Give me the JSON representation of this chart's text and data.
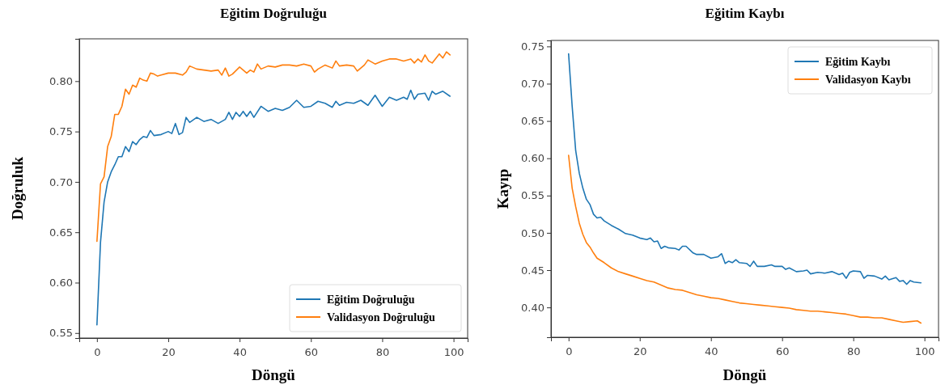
{
  "chart_data": [
    {
      "type": "line",
      "title": "Eğitim Doğruluğu",
      "xlabel": "Döngü",
      "ylabel": "Doğruluk",
      "xlim": [
        -4.95,
        103.95
      ],
      "ylim": [
        0.545,
        0.842
      ],
      "xticks": [
        0,
        20,
        40,
        60,
        80,
        100
      ],
      "yticks": [
        {
          "value": 0.55,
          "label": "0.55"
        },
        {
          "value": 0.6,
          "label": "0.60"
        },
        {
          "value": 0.65,
          "label": "0.65"
        },
        {
          "value": 0.7,
          "label": "0.70"
        },
        {
          "value": 0.75,
          "label": "0.75"
        },
        {
          "value": 0.8,
          "label": "0.80"
        }
      ],
      "legend": "bottom right",
      "grid": false,
      "series": [
        {
          "name": "Eğitim Doğruluğu",
          "color": "#1f77b4",
          "x": [
            0,
            1,
            2,
            3,
            4,
            5,
            6,
            7,
            8,
            9,
            10,
            11,
            12,
            13,
            14,
            15,
            16,
            18,
            20,
            21,
            22,
            23,
            24,
            25,
            26,
            28,
            30,
            32,
            34,
            36,
            37,
            38,
            39,
            40,
            41,
            42,
            43,
            44,
            46,
            48,
            50,
            52,
            54,
            56,
            58,
            60,
            62,
            64,
            66,
            67,
            68,
            70,
            72,
            74,
            76,
            78,
            80,
            82,
            84,
            86,
            87,
            88,
            89,
            90,
            92,
            93,
            94,
            95,
            97,
            99
          ],
          "values": [
            0.558,
            0.64,
            0.68,
            0.7,
            0.71,
            0.717,
            0.725,
            0.725,
            0.735,
            0.73,
            0.74,
            0.737,
            0.742,
            0.745,
            0.744,
            0.751,
            0.746,
            0.747,
            0.75,
            0.748,
            0.758,
            0.747,
            0.749,
            0.764,
            0.759,
            0.764,
            0.76,
            0.762,
            0.758,
            0.762,
            0.769,
            0.762,
            0.769,
            0.765,
            0.77,
            0.765,
            0.77,
            0.764,
            0.775,
            0.77,
            0.773,
            0.771,
            0.774,
            0.781,
            0.774,
            0.775,
            0.78,
            0.778,
            0.774,
            0.78,
            0.776,
            0.779,
            0.778,
            0.781,
            0.776,
            0.786,
            0.775,
            0.784,
            0.781,
            0.784,
            0.782,
            0.791,
            0.782,
            0.787,
            0.788,
            0.781,
            0.79,
            0.787,
            0.79,
            0.785
          ]
        },
        {
          "name": "Validasyon Doğruluğu",
          "color": "#ff7f0e",
          "x": [
            0,
            1,
            2,
            3,
            4,
            5,
            6,
            7,
            8,
            9,
            10,
            11,
            12,
            13,
            14,
            15,
            16,
            17,
            18,
            20,
            22,
            24,
            25,
            26,
            28,
            30,
            32,
            34,
            35,
            36,
            37,
            38,
            40,
            42,
            43,
            44,
            45,
            46,
            48,
            50,
            52,
            54,
            56,
            58,
            60,
            61,
            62,
            64,
            66,
            67,
            68,
            70,
            72,
            73,
            75,
            76,
            78,
            80,
            82,
            84,
            86,
            88,
            89,
            90,
            91,
            92,
            93,
            94,
            96,
            97,
            98,
            99
          ],
          "values": [
            0.641,
            0.698,
            0.705,
            0.735,
            0.745,
            0.767,
            0.767,
            0.775,
            0.792,
            0.787,
            0.796,
            0.794,
            0.803,
            0.801,
            0.8,
            0.808,
            0.807,
            0.805,
            0.806,
            0.808,
            0.808,
            0.806,
            0.809,
            0.815,
            0.812,
            0.811,
            0.81,
            0.811,
            0.806,
            0.813,
            0.805,
            0.807,
            0.814,
            0.808,
            0.811,
            0.809,
            0.817,
            0.812,
            0.815,
            0.814,
            0.816,
            0.816,
            0.815,
            0.817,
            0.815,
            0.809,
            0.812,
            0.816,
            0.813,
            0.82,
            0.815,
            0.816,
            0.815,
            0.81,
            0.816,
            0.821,
            0.817,
            0.82,
            0.822,
            0.822,
            0.82,
            0.822,
            0.818,
            0.822,
            0.819,
            0.826,
            0.82,
            0.818,
            0.827,
            0.823,
            0.829,
            0.826
          ]
        }
      ]
    },
    {
      "type": "line",
      "title": "Eğitim Kaybı",
      "xlabel": "Döngü",
      "ylabel": "Kayıp",
      "xlim": [
        -4.95,
        103.95
      ],
      "ylim": [
        0.36,
        0.758
      ],
      "xticks": [
        0,
        20,
        40,
        60,
        80,
        100
      ],
      "yticks": [
        {
          "value": 0.4,
          "label": "0.40"
        },
        {
          "value": 0.45,
          "label": "0.45"
        },
        {
          "value": 0.5,
          "label": "0.50"
        },
        {
          "value": 0.55,
          "label": "0.55"
        },
        {
          "value": 0.6,
          "label": "0.60"
        },
        {
          "value": 0.65,
          "label": "0.65"
        },
        {
          "value": 0.7,
          "label": "0.70"
        },
        {
          "value": 0.75,
          "label": "0.75"
        }
      ],
      "legend": "top right",
      "grid": false,
      "series": [
        {
          "name": "Eğitim Kaybı",
          "color": "#1f77b4",
          "x": [
            0,
            1,
            2,
            3,
            4,
            5,
            6,
            7,
            8,
            9,
            10,
            12,
            14,
            16,
            18,
            20,
            22,
            23,
            24,
            25,
            26,
            27,
            28,
            30,
            31,
            32,
            33,
            35,
            36,
            38,
            40,
            42,
            43,
            44,
            45,
            46,
            47,
            48,
            50,
            51,
            52,
            53,
            55,
            57,
            58,
            60,
            61,
            62,
            64,
            66,
            67,
            68,
            70,
            72,
            74,
            76,
            77,
            78,
            79,
            80,
            82,
            83,
            84,
            86,
            88,
            89,
            90,
            92,
            93,
            94,
            95,
            96,
            97,
            99
          ],
          "values": [
            0.74,
            0.67,
            0.61,
            0.58,
            0.56,
            0.545,
            0.538,
            0.525,
            0.52,
            0.521,
            0.516,
            0.51,
            0.505,
            0.499,
            0.497,
            0.493,
            0.491,
            0.493,
            0.488,
            0.489,
            0.479,
            0.482,
            0.48,
            0.479,
            0.477,
            0.482,
            0.482,
            0.473,
            0.471,
            0.471,
            0.466,
            0.468,
            0.472,
            0.459,
            0.462,
            0.46,
            0.464,
            0.46,
            0.459,
            0.455,
            0.462,
            0.455,
            0.455,
            0.457,
            0.455,
            0.455,
            0.451,
            0.453,
            0.448,
            0.449,
            0.45,
            0.445,
            0.447,
            0.446,
            0.448,
            0.444,
            0.446,
            0.439,
            0.447,
            0.449,
            0.448,
            0.439,
            0.443,
            0.442,
            0.438,
            0.442,
            0.437,
            0.44,
            0.435,
            0.436,
            0.431,
            0.436,
            0.434,
            0.433
          ]
        },
        {
          "name": "Validasyon Kaybı",
          "color": "#ff7f0e",
          "x": [
            0,
            1,
            2,
            3,
            4,
            5,
            6,
            7,
            8,
            10,
            12,
            14,
            16,
            18,
            20,
            22,
            24,
            26,
            28,
            30,
            32,
            34,
            36,
            38,
            40,
            42,
            44,
            46,
            48,
            50,
            52,
            54,
            56,
            58,
            60,
            62,
            64,
            66,
            68,
            70,
            72,
            74,
            76,
            78,
            80,
            82,
            84,
            86,
            88,
            90,
            92,
            94,
            96,
            98,
            99
          ],
          "values": [
            0.604,
            0.56,
            0.535,
            0.513,
            0.498,
            0.487,
            0.481,
            0.473,
            0.466,
            0.46,
            0.453,
            0.448,
            0.445,
            0.442,
            0.439,
            0.436,
            0.434,
            0.43,
            0.426,
            0.424,
            0.423,
            0.42,
            0.417,
            0.415,
            0.413,
            0.412,
            0.41,
            0.408,
            0.406,
            0.405,
            0.404,
            0.403,
            0.402,
            0.401,
            0.4,
            0.399,
            0.397,
            0.396,
            0.395,
            0.395,
            0.394,
            0.393,
            0.392,
            0.391,
            0.389,
            0.387,
            0.387,
            0.386,
            0.386,
            0.384,
            0.382,
            0.38,
            0.381,
            0.382,
            0.379
          ]
        }
      ]
    }
  ]
}
